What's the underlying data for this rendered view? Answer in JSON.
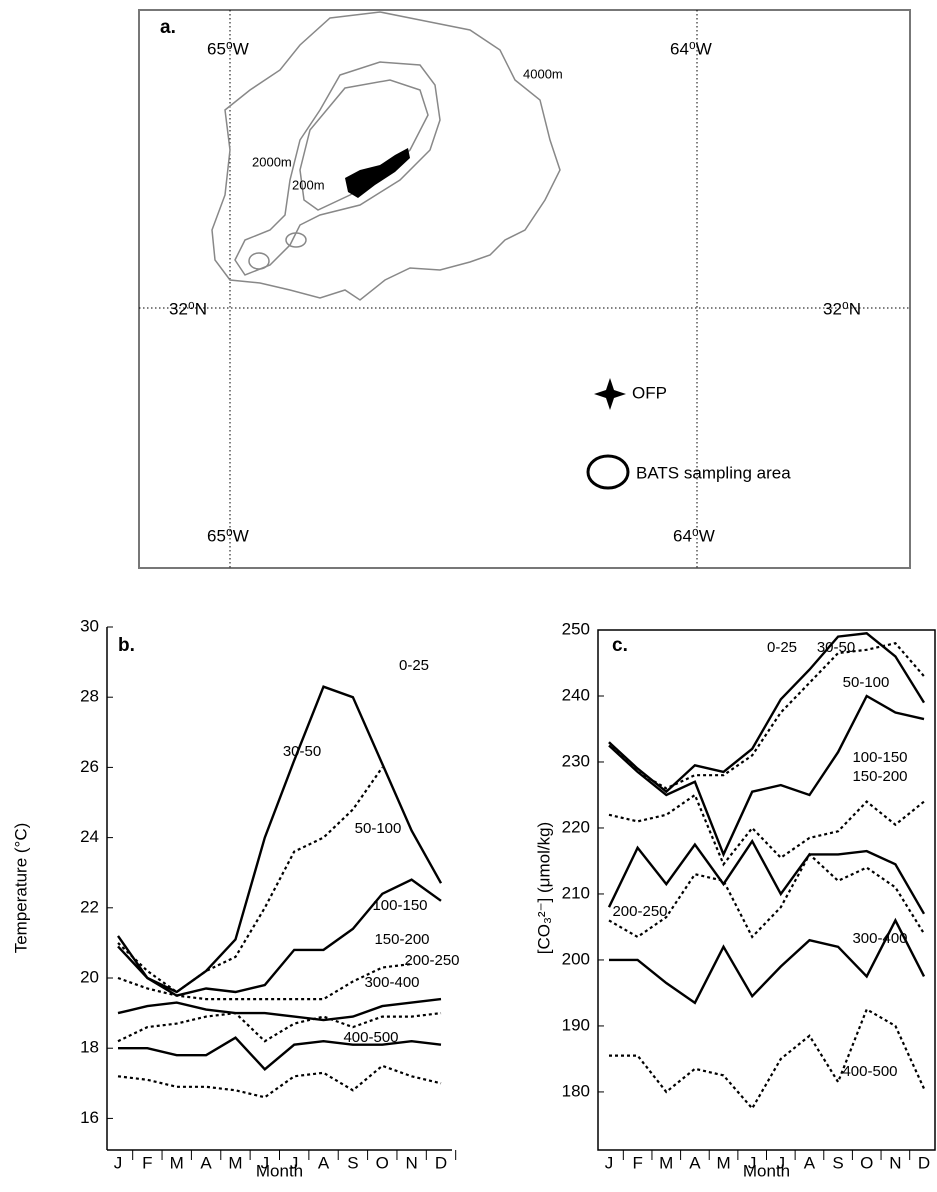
{
  "map": {
    "panel_label": "a.",
    "lon_labels": [
      "65⁰W",
      "64⁰W",
      "65⁰W",
      "64⁰W"
    ],
    "lat_labels": [
      "32⁰N",
      "32⁰N"
    ],
    "contours": [
      "4000m",
      "2000m",
      "200m"
    ],
    "legend": [
      "OFP",
      "BATS sampling area"
    ]
  },
  "chart_data": [
    {
      "type": "line",
      "panel_label": "b.",
      "x_label": "Month",
      "y_label": "Temperature (°C)",
      "categories": [
        "J",
        "F",
        "M",
        "A",
        "M",
        "J",
        "J",
        "A",
        "S",
        "O",
        "N",
        "D"
      ],
      "ylim": [
        15.1,
        30
      ],
      "yticks": [
        16,
        18,
        20,
        22,
        24,
        26,
        28,
        30
      ],
      "series": [
        {
          "name": "0-25",
          "color": "#000000",
          "style": "solid",
          "values": [
            21.2,
            20.0,
            19.6,
            20.2,
            21.1,
            24.0,
            26.2,
            28.3,
            28.0,
            26.1,
            24.2,
            22.7
          ]
        },
        {
          "name": "30-50",
          "color": "#000000",
          "style": "dotted",
          "values": [
            21.0,
            20.2,
            19.6,
            20.2,
            20.6,
            22.0,
            23.6,
            24.0,
            24.8,
            26.0,
            null,
            null
          ]
        },
        {
          "name": "50-100",
          "color": "#000000",
          "style": "solid",
          "values": [
            20.9,
            20.0,
            19.5,
            19.7,
            19.6,
            19.8,
            20.8,
            20.8,
            21.4,
            22.4,
            22.8,
            22.2
          ]
        },
        {
          "name": "100-150",
          "color": "#000000",
          "style": "dotted",
          "values": [
            20.0,
            19.7,
            19.5,
            19.4,
            19.4,
            19.4,
            19.4,
            19.4,
            19.9,
            20.3,
            20.4,
            null
          ]
        },
        {
          "name": "150-200",
          "color": "#000000",
          "style": "solid",
          "values": [
            19.0,
            19.2,
            19.3,
            19.1,
            19.0,
            19.0,
            18.9,
            18.8,
            18.9,
            19.2,
            19.3,
            19.4
          ]
        },
        {
          "name": "200-250",
          "color": "#000000",
          "style": "dotted",
          "values": [
            18.2,
            18.6,
            18.7,
            18.9,
            19.0,
            18.2,
            18.7,
            18.9,
            18.6,
            18.9,
            18.9,
            19.0
          ]
        },
        {
          "name": "300-400",
          "color": "#000000",
          "style": "solid",
          "values": [
            18.0,
            18.0,
            17.8,
            17.8,
            18.3,
            17.4,
            18.1,
            18.2,
            18.1,
            18.1,
            18.2,
            18.1
          ]
        },
        {
          "name": "400-500",
          "color": "#000000",
          "style": "dotted",
          "values": [
            17.2,
            17.1,
            16.9,
            16.9,
            16.8,
            16.6,
            17.2,
            17.3,
            16.8,
            17.5,
            17.2,
            17.0
          ]
        }
      ]
    },
    {
      "type": "line",
      "panel_label": "c.",
      "x_label": "Month",
      "y_label": "[CO₃²⁻] (μmol/kg)",
      "categories": [
        "J",
        "F",
        "M",
        "A",
        "M",
        "J",
        "J",
        "A",
        "S",
        "O",
        "N",
        "D"
      ],
      "ylim": [
        171.2,
        250
      ],
      "yticks": [
        180,
        190,
        200,
        210,
        220,
        230,
        240,
        250
      ],
      "series": [
        {
          "name": "0-25",
          "color": "#000000",
          "style": "solid",
          "values": [
            233,
            229,
            225.5,
            229.5,
            228.5,
            232,
            239.5,
            244,
            249,
            249.5,
            246,
            239
          ]
        },
        {
          "name": "30-50",
          "color": "#000000",
          "style": "dotted",
          "values": [
            233,
            228.5,
            226,
            228,
            228,
            231,
            237.5,
            242,
            246.5,
            247,
            248,
            243
          ]
        },
        {
          "name": "50-100",
          "color": "#000000",
          "style": "solid",
          "values": [
            232.5,
            228.5,
            225,
            227,
            216,
            225.5,
            226.5,
            225,
            231.5,
            240,
            237.5,
            236.5
          ]
        },
        {
          "name": "100-150",
          "color": "#000000",
          "style": "dotted",
          "values": [
            222,
            221,
            222,
            225,
            214.5,
            220,
            215.5,
            218.5,
            219.5,
            224,
            220.5,
            224
          ]
        },
        {
          "name": "150-200",
          "color": "#000000",
          "style": "solid",
          "values": [
            208,
            217,
            211.5,
            217.5,
            211.5,
            218,
            210,
            216,
            216,
            216.5,
            214.5,
            207
          ]
        },
        {
          "name": "200-250",
          "color": "#000000",
          "style": "dotted",
          "values": [
            206,
            203.5,
            206.5,
            213,
            212,
            203.5,
            208,
            216,
            212,
            214,
            211,
            204
          ]
        },
        {
          "name": "300-400",
          "color": "#000000",
          "style": "solid",
          "values": [
            200,
            200,
            196.5,
            193.5,
            202,
            194.5,
            199,
            203,
            202,
            197.5,
            206,
            197.5
          ]
        },
        {
          "name": "400-500",
          "color": "#000000",
          "style": "dotted",
          "values": [
            185.5,
            185.5,
            180,
            183.5,
            182.5,
            177.5,
            185,
            188.5,
            181.5,
            192.5,
            190,
            180.5
          ]
        }
      ]
    }
  ]
}
